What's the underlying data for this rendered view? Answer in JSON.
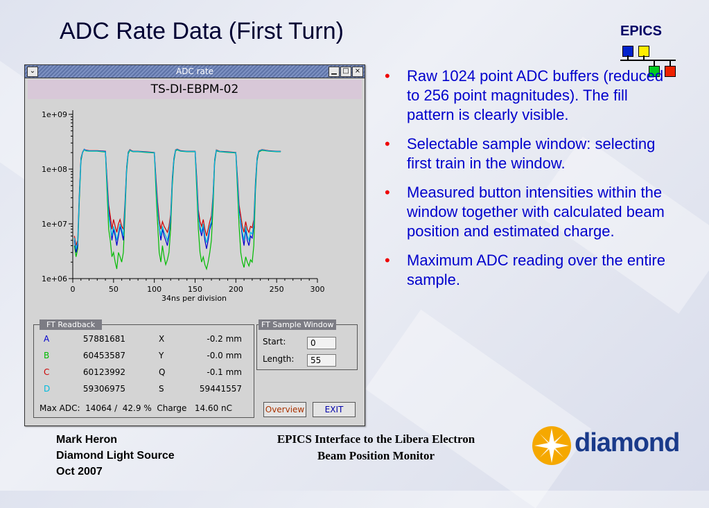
{
  "slide": {
    "title": "ADC Rate Data (First Turn)",
    "epics_logo": "EPICS",
    "bullets": [
      "Raw 1024 point ADC buffers (reduced to 256 point magnitudes). The fill pattern is clearly visible.",
      "Selectable sample window: selecting first train in the window.",
      "Measured button intensities within the window together with calculated beam position and estimated charge.",
      "Maximum ADC reading over the entire sample."
    ],
    "footer_left": [
      "Mark Heron",
      "Diamond Light Source",
      "Oct 2007"
    ],
    "footer_mid": [
      "EPICS Interface to the Libera Electron",
      "Beam Position Monitor"
    ],
    "diamond_logo": "diamond"
  },
  "window": {
    "title": "ADC rate",
    "menu_icon": "chevron-down-icon",
    "minimize_icon": "minimize-icon",
    "maximize_icon": "maximize-icon",
    "close_icon": "close-icon",
    "plot_header": "TS-DI-EBPM-02"
  },
  "chart_data": {
    "type": "line",
    "xlabel": "34ns per division",
    "ylabel": "",
    "xlim": [
      0,
      300
    ],
    "ylim": [
      1000000,
      1000000000
    ],
    "yscale": "log",
    "x_ticks": [
      "0",
      "50",
      "100",
      "150",
      "200",
      "250",
      "300"
    ],
    "y_ticks": [
      "1e+06",
      "1e+07",
      "1e+08",
      "1e+09"
    ],
    "grid": false,
    "series_colors": [
      "#0000cc",
      "#00bb00",
      "#cc0000",
      "#00bbdd"
    ],
    "series": [
      {
        "x": [
          2,
          4,
          6,
          8,
          10,
          12,
          14,
          16,
          20,
          30,
          40,
          42,
          44,
          46,
          48,
          50,
          52,
          54,
          56,
          58,
          60,
          62,
          64,
          66,
          68,
          70,
          72,
          74,
          76,
          80,
          90,
          100,
          102,
          104,
          106,
          108,
          110,
          112,
          114,
          116,
          118,
          120,
          122,
          124,
          126,
          128,
          132,
          140,
          150,
          152,
          154,
          156,
          158,
          160,
          162,
          164,
          166,
          168,
          170,
          172,
          174,
          176,
          180,
          190,
          200,
          202,
          204,
          206,
          208,
          210,
          212,
          214,
          216,
          218,
          220,
          222,
          224,
          226,
          228,
          232,
          240,
          250,
          255
        ],
        "values": [
          5000000,
          3000000,
          4000000,
          30000000,
          150000000,
          200000000,
          230000000,
          220000000,
          215000000,
          215000000,
          210000000,
          60000000,
          18000000,
          10000000,
          5000000,
          8000000,
          6000000,
          4000000,
          6000000,
          9000000,
          7000000,
          5000000,
          20000000,
          100000000,
          200000000,
          225000000,
          215000000,
          210000000,
          210000000,
          210000000,
          205000000,
          200000000,
          60000000,
          20000000,
          9000000,
          5000000,
          8000000,
          6000000,
          5000000,
          4000000,
          6000000,
          12000000,
          60000000,
          150000000,
          220000000,
          230000000,
          215000000,
          210000000,
          210000000,
          60000000,
          15000000,
          8000000,
          6000000,
          9000000,
          5000000,
          3500000,
          5000000,
          8000000,
          10000000,
          30000000,
          140000000,
          220000000,
          210000000,
          205000000,
          200000000,
          60000000,
          18000000,
          10000000,
          6000000,
          4000000,
          8000000,
          5000000,
          4000000,
          6000000,
          5500000,
          9000000,
          50000000,
          150000000,
          210000000,
          225000000,
          215000000,
          210000000,
          210000000
        ]
      },
      {
        "x": [
          2,
          4,
          6,
          8,
          10,
          12,
          14,
          16,
          20,
          30,
          40,
          42,
          44,
          46,
          48,
          50,
          52,
          54,
          56,
          58,
          60,
          62,
          64,
          66,
          68,
          70,
          72,
          74,
          76,
          80,
          90,
          100,
          102,
          104,
          106,
          108,
          110,
          112,
          114,
          116,
          118,
          120,
          122,
          124,
          126,
          128,
          132,
          140,
          150,
          152,
          154,
          156,
          158,
          160,
          162,
          164,
          166,
          168,
          170,
          172,
          174,
          176,
          180,
          190,
          200,
          202,
          204,
          206,
          208,
          210,
          212,
          214,
          216,
          218,
          220,
          222,
          224,
          226,
          228,
          232,
          240,
          250,
          255
        ],
        "values": [
          4000000,
          2500000,
          3500000,
          25000000,
          140000000,
          200000000,
          225000000,
          215000000,
          212000000,
          212000000,
          205000000,
          40000000,
          8000000,
          5000000,
          2500000,
          3000000,
          2000000,
          1500000,
          3000000,
          2500000,
          2000000,
          3000000,
          15000000,
          90000000,
          190000000,
          220000000,
          212000000,
          208000000,
          208000000,
          208000000,
          202000000,
          198000000,
          40000000,
          10000000,
          3000000,
          2000000,
          4000000,
          2500000,
          1800000,
          2200000,
          3000000,
          8000000,
          50000000,
          140000000,
          215000000,
          225000000,
          212000000,
          208000000,
          208000000,
          40000000,
          8000000,
          3000000,
          2000000,
          2500000,
          1800000,
          1500000,
          2000000,
          3000000,
          5000000,
          20000000,
          130000000,
          215000000,
          208000000,
          202000000,
          198000000,
          40000000,
          9000000,
          3000000,
          2000000,
          1600000,
          2500000,
          2000000,
          1700000,
          2200000,
          2000000,
          4000000,
          40000000,
          140000000,
          205000000,
          220000000,
          212000000,
          208000000,
          208000000
        ]
      },
      {
        "x": [
          2,
          4,
          6,
          8,
          10,
          12,
          14,
          16,
          20,
          30,
          40,
          42,
          44,
          46,
          48,
          50,
          52,
          54,
          56,
          58,
          60,
          62,
          64,
          66,
          68,
          70,
          72,
          74,
          76,
          80,
          90,
          100,
          102,
          104,
          106,
          108,
          110,
          112,
          114,
          116,
          118,
          120,
          122,
          124,
          126,
          128,
          132,
          140,
          150,
          152,
          154,
          156,
          158,
          160,
          162,
          164,
          166,
          168,
          170,
          172,
          174,
          176,
          180,
          190,
          200,
          202,
          204,
          206,
          208,
          210,
          212,
          214,
          216,
          218,
          220,
          222,
          224,
          226,
          228,
          232,
          240,
          250,
          255
        ],
        "values": [
          6000000,
          4000000,
          5000000,
          35000000,
          160000000,
          205000000,
          230000000,
          222000000,
          218000000,
          218000000,
          212000000,
          70000000,
          22000000,
          14000000,
          8000000,
          12000000,
          9000000,
          7000000,
          10000000,
          12000000,
          9000000,
          8000000,
          25000000,
          110000000,
          205000000,
          228000000,
          218000000,
          212000000,
          212000000,
          212000000,
          208000000,
          202000000,
          70000000,
          25000000,
          12000000,
          8000000,
          11000000,
          9000000,
          8000000,
          7000000,
          9000000,
          15000000,
          70000000,
          160000000,
          225000000,
          232000000,
          218000000,
          212000000,
          212000000,
          70000000,
          18000000,
          11000000,
          9000000,
          12000000,
          8000000,
          6000000,
          8000000,
          11000000,
          14000000,
          35000000,
          150000000,
          225000000,
          212000000,
          208000000,
          202000000,
          70000000,
          22000000,
          14000000,
          9000000,
          7000000,
          11000000,
          8000000,
          7000000,
          9000000,
          8500000,
          12000000,
          60000000,
          160000000,
          215000000,
          228000000,
          218000000,
          212000000,
          212000000
        ]
      },
      {
        "x": [
          2,
          4,
          6,
          8,
          10,
          12,
          14,
          16,
          20,
          30,
          40,
          42,
          44,
          46,
          48,
          50,
          52,
          54,
          56,
          58,
          60,
          62,
          64,
          66,
          68,
          70,
          72,
          74,
          76,
          80,
          90,
          100,
          102,
          104,
          106,
          108,
          110,
          112,
          114,
          116,
          118,
          120,
          122,
          124,
          126,
          128,
          132,
          140,
          150,
          152,
          154,
          156,
          158,
          160,
          162,
          164,
          166,
          168,
          170,
          172,
          174,
          176,
          180,
          190,
          200,
          202,
          204,
          206,
          208,
          210,
          212,
          214,
          216,
          218,
          220,
          222,
          224,
          226,
          228,
          232,
          240,
          250,
          255
        ],
        "values": [
          5500000,
          3500000,
          4500000,
          32000000,
          155000000,
          202000000,
          228000000,
          218000000,
          214000000,
          214000000,
          208000000,
          55000000,
          15000000,
          9000000,
          6000000,
          9000000,
          7000000,
          5000000,
          7000000,
          10000000,
          8000000,
          6000000,
          22000000,
          105000000,
          200000000,
          225000000,
          214000000,
          210000000,
          210000000,
          210000000,
          205000000,
          200000000,
          55000000,
          18000000,
          9000000,
          6000000,
          9000000,
          7000000,
          6000000,
          5000000,
          7000000,
          13000000,
          65000000,
          155000000,
          222000000,
          230000000,
          214000000,
          210000000,
          210000000,
          55000000,
          13000000,
          9000000,
          7000000,
          10000000,
          6000000,
          4500000,
          6000000,
          9000000,
          11000000,
          32000000,
          145000000,
          222000000,
          210000000,
          205000000,
          200000000,
          55000000,
          16000000,
          11000000,
          7000000,
          5000000,
          9000000,
          6000000,
          5000000,
          7000000,
          6500000,
          10000000,
          55000000,
          155000000,
          212000000,
          226000000,
          214000000,
          210000000,
          210000000
        ]
      }
    ]
  },
  "readback": {
    "label": "FT Readback",
    "rows": [
      {
        "ch": "A",
        "ch_color": "#0000cc",
        "val": "57881681",
        "q": "X",
        "qval": "-0.2 mm"
      },
      {
        "ch": "B",
        "ch_color": "#00bb00",
        "val": "60453587",
        "q": "Y",
        "qval": "-0.0 mm"
      },
      {
        "ch": "C",
        "ch_color": "#cc0000",
        "val": "60123992",
        "q": "Q",
        "qval": "-0.1 mm"
      },
      {
        "ch": "D",
        "ch_color": "#00bbdd",
        "val": "59306975",
        "q": "S",
        "qval": "59441557"
      }
    ],
    "max_adc": "Max ADC:  14064 /  42.9 %  Charge   14.60 nC"
  },
  "sample_window": {
    "label": "FT Sample Window",
    "start_label": "Start:",
    "start_value": "0",
    "length_label": "Length:",
    "length_value": "55"
  },
  "buttons": {
    "overview": "Overview",
    "exit": "EXIT"
  }
}
